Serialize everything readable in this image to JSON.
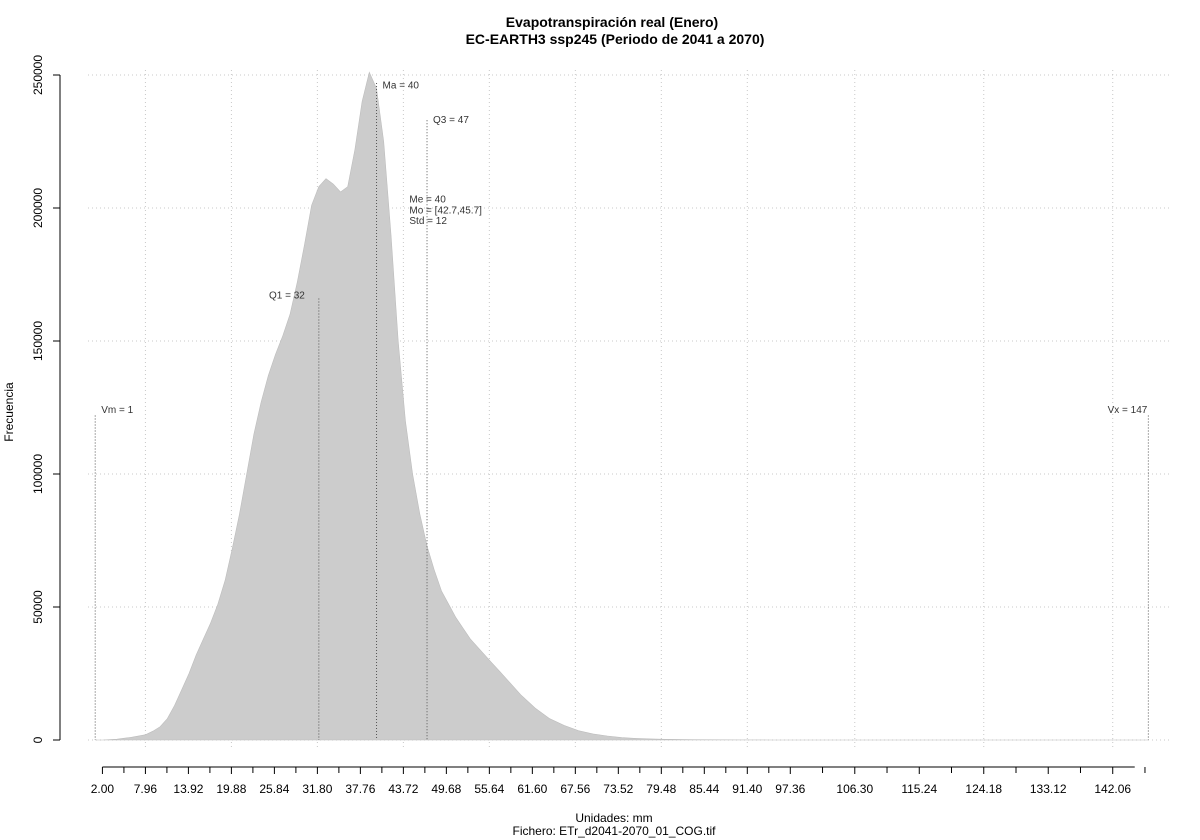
{
  "chart_data": {
    "type": "area",
    "title": "Evapotranspiración real (Enero)",
    "subtitle": "EC-EARTH3 ssp245 (Periodo de 2041 a 2070)",
    "xlabel": "Unidades: mm",
    "ylabel": "Frecuencia",
    "footer": "Fichero: ETr_d2041-2070_01_COG.tif",
    "xlim": [
      0,
      150
    ],
    "ylim": [
      0,
      250000
    ],
    "grid": true,
    "fill_color": "#cccccc",
    "x_tick_labels": [
      "2.00",
      "7.96",
      "13.92",
      "19.88",
      "25.84",
      "31.80",
      "37.76",
      "43.72",
      "49.68",
      "55.64",
      "61.60",
      "67.56",
      "73.52",
      "79.48",
      "85.44",
      "91.40",
      "97.36",
      "106.30",
      "115.24",
      "124.18",
      "133.12",
      "142.06"
    ],
    "x_tick_values": [
      2.0,
      7.96,
      13.92,
      19.88,
      25.84,
      31.8,
      37.76,
      43.72,
      49.68,
      55.64,
      61.6,
      67.56,
      73.52,
      79.48,
      85.44,
      91.4,
      97.36,
      106.3,
      115.24,
      124.18,
      133.12,
      142.06
    ],
    "y_tick_labels": [
      "0",
      "50000",
      "100000",
      "150000",
      "200000",
      "250000"
    ],
    "y_tick_values": [
      0,
      50000,
      100000,
      150000,
      200000,
      250000
    ],
    "x": [
      1,
      2,
      4,
      6,
      8,
      9,
      10,
      11,
      12,
      13,
      14,
      15,
      16,
      17,
      18,
      19,
      20,
      21,
      22,
      23,
      24,
      25,
      26,
      27,
      28,
      29,
      30,
      31,
      32,
      33,
      34,
      35,
      36,
      37,
      38,
      39,
      40,
      41,
      42,
      43,
      44,
      45,
      46,
      47,
      48,
      49,
      50,
      51,
      52,
      53,
      54,
      55,
      56,
      57,
      58,
      60,
      62,
      64,
      66,
      68,
      70,
      72,
      74,
      76,
      78,
      80,
      84,
      88,
      90,
      95,
      100,
      110,
      120,
      130,
      140,
      147
    ],
    "values": [
      0,
      0,
      300,
      1000,
      2000,
      3300,
      5000,
      8000,
      13000,
      19000,
      25000,
      32000,
      38000,
      44000,
      51000,
      60000,
      72000,
      85000,
      100000,
      115000,
      127000,
      137000,
      145000,
      152000,
      160000,
      172000,
      186000,
      201000,
      208000,
      211000,
      209000,
      206000,
      208000,
      222000,
      240000,
      251000,
      245000,
      225000,
      190000,
      150000,
      120000,
      100000,
      85000,
      73000,
      64000,
      56000,
      51000,
      46000,
      42000,
      38000,
      35000,
      32000,
      29000,
      26000,
      23000,
      17000,
      12000,
      8000,
      5500,
      3500,
      2300,
      1500,
      900,
      600,
      400,
      250,
      120,
      60,
      40,
      15,
      5,
      2,
      1,
      0,
      0,
      0
    ],
    "annotations": [
      {
        "label": "Vm = 1",
        "x": 1,
        "y": 123000,
        "line_top": 122000
      },
      {
        "label": "Q1 = 32",
        "x": 32,
        "y": 166000,
        "line_top": 166000
      },
      {
        "label": "Ma = 40",
        "x": 40,
        "y": 245000,
        "line_top": 247000
      },
      {
        "label": "Q3 = 47",
        "x": 47,
        "y": 232000,
        "line_top": 233000
      },
      {
        "label": "Vx = 147",
        "x": 147,
        "y": 123000,
        "line_top": 122000
      }
    ],
    "stats": [
      "Me = 40",
      "Mo = [42.7,45.7]",
      "Std = 12"
    ],
    "stats_x": 44,
    "stats_y": [
      202000,
      198000,
      194000
    ]
  }
}
